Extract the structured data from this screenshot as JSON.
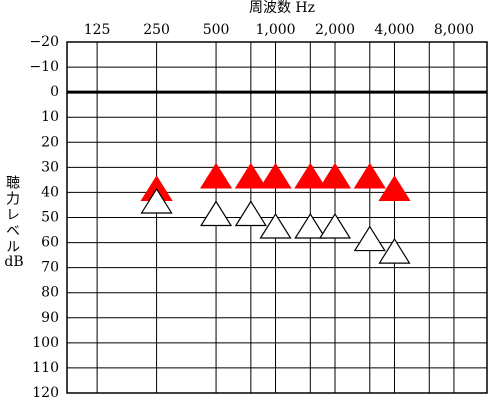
{
  "chart_data": {
    "type": "scatter",
    "x_label": "周波数 Hz",
    "y_label": "聴力レベル",
    "y_unit": "dB",
    "log_x": true,
    "invert_y": true,
    "grid": true,
    "xlim": [
      88,
      11760
    ],
    "xticks": [
      125,
      250,
      {
        "value": 500,
        "label": "500"
      },
      {
        "value": 1000,
        "label": "1,000"
      },
      {
        "value": 2000,
        "label": "2,000"
      },
      {
        "value": 4000,
        "label": "4,000"
      },
      {
        "value": 8000,
        "label": "8,000"
      }
    ],
    "xgrid_minor": [
      750,
      1500,
      3000,
      6000
    ],
    "ylim": [
      -20,
      120
    ],
    "yticks": [
      {
        "value": -20,
        "label": "−20"
      },
      {
        "value": -10,
        "label": "−10"
      },
      0,
      10,
      20,
      30,
      40,
      50,
      60,
      70,
      80,
      90,
      100,
      110,
      120
    ],
    "series": [
      {
        "color": "#ff0000",
        "filled": true,
        "x": [
          250,
          500,
          750,
          1000,
          1500,
          2000,
          3000,
          4000
        ],
        "values": [
          40,
          35,
          35,
          35,
          35,
          35,
          35,
          40
        ]
      },
      {
        "color": "#ffffff",
        "filled": false,
        "x": [
          250,
          500,
          750,
          1000,
          1500,
          2000,
          3000,
          4000
        ],
        "values": [
          45,
          50,
          50,
          55,
          55,
          55,
          60,
          65
        ]
      }
    ]
  }
}
